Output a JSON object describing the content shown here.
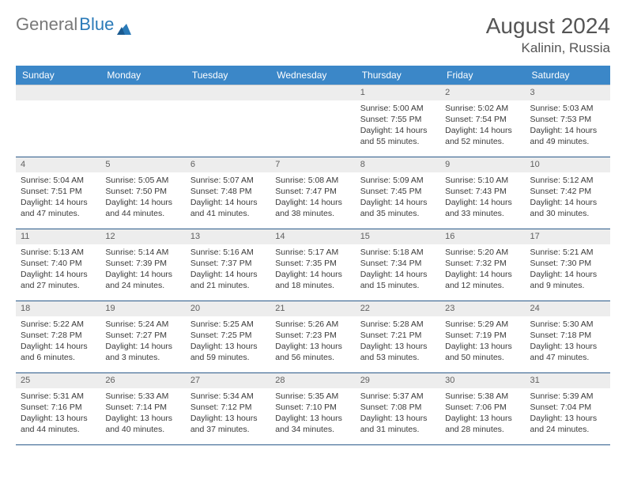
{
  "brand": {
    "part1": "General",
    "part2": "Blue"
  },
  "title": "August 2024",
  "location": "Kalinin, Russia",
  "colors": {
    "header_bg": "#3b87c8",
    "header_text": "#ffffff",
    "daynum_bg": "#ededed",
    "row_border": "#2b5a8a",
    "body_text": "#3a3a3a",
    "logo_gray": "#787878",
    "logo_blue": "#2a7ab8"
  },
  "weekdays": [
    "Sunday",
    "Monday",
    "Tuesday",
    "Wednesday",
    "Thursday",
    "Friday",
    "Saturday"
  ],
  "weeks": [
    [
      null,
      null,
      null,
      null,
      {
        "n": "1",
        "sr": "5:00 AM",
        "ss": "7:55 PM",
        "dl": "14 hours and 55 minutes."
      },
      {
        "n": "2",
        "sr": "5:02 AM",
        "ss": "7:54 PM",
        "dl": "14 hours and 52 minutes."
      },
      {
        "n": "3",
        "sr": "5:03 AM",
        "ss": "7:53 PM",
        "dl": "14 hours and 49 minutes."
      }
    ],
    [
      {
        "n": "4",
        "sr": "5:04 AM",
        "ss": "7:51 PM",
        "dl": "14 hours and 47 minutes."
      },
      {
        "n": "5",
        "sr": "5:05 AM",
        "ss": "7:50 PM",
        "dl": "14 hours and 44 minutes."
      },
      {
        "n": "6",
        "sr": "5:07 AM",
        "ss": "7:48 PM",
        "dl": "14 hours and 41 minutes."
      },
      {
        "n": "7",
        "sr": "5:08 AM",
        "ss": "7:47 PM",
        "dl": "14 hours and 38 minutes."
      },
      {
        "n": "8",
        "sr": "5:09 AM",
        "ss": "7:45 PM",
        "dl": "14 hours and 35 minutes."
      },
      {
        "n": "9",
        "sr": "5:10 AM",
        "ss": "7:43 PM",
        "dl": "14 hours and 33 minutes."
      },
      {
        "n": "10",
        "sr": "5:12 AM",
        "ss": "7:42 PM",
        "dl": "14 hours and 30 minutes."
      }
    ],
    [
      {
        "n": "11",
        "sr": "5:13 AM",
        "ss": "7:40 PM",
        "dl": "14 hours and 27 minutes."
      },
      {
        "n": "12",
        "sr": "5:14 AM",
        "ss": "7:39 PM",
        "dl": "14 hours and 24 minutes."
      },
      {
        "n": "13",
        "sr": "5:16 AM",
        "ss": "7:37 PM",
        "dl": "14 hours and 21 minutes."
      },
      {
        "n": "14",
        "sr": "5:17 AM",
        "ss": "7:35 PM",
        "dl": "14 hours and 18 minutes."
      },
      {
        "n": "15",
        "sr": "5:18 AM",
        "ss": "7:34 PM",
        "dl": "14 hours and 15 minutes."
      },
      {
        "n": "16",
        "sr": "5:20 AM",
        "ss": "7:32 PM",
        "dl": "14 hours and 12 minutes."
      },
      {
        "n": "17",
        "sr": "5:21 AM",
        "ss": "7:30 PM",
        "dl": "14 hours and 9 minutes."
      }
    ],
    [
      {
        "n": "18",
        "sr": "5:22 AM",
        "ss": "7:28 PM",
        "dl": "14 hours and 6 minutes."
      },
      {
        "n": "19",
        "sr": "5:24 AM",
        "ss": "7:27 PM",
        "dl": "14 hours and 3 minutes."
      },
      {
        "n": "20",
        "sr": "5:25 AM",
        "ss": "7:25 PM",
        "dl": "13 hours and 59 minutes."
      },
      {
        "n": "21",
        "sr": "5:26 AM",
        "ss": "7:23 PM",
        "dl": "13 hours and 56 minutes."
      },
      {
        "n": "22",
        "sr": "5:28 AM",
        "ss": "7:21 PM",
        "dl": "13 hours and 53 minutes."
      },
      {
        "n": "23",
        "sr": "5:29 AM",
        "ss": "7:19 PM",
        "dl": "13 hours and 50 minutes."
      },
      {
        "n": "24",
        "sr": "5:30 AM",
        "ss": "7:18 PM",
        "dl": "13 hours and 47 minutes."
      }
    ],
    [
      {
        "n": "25",
        "sr": "5:31 AM",
        "ss": "7:16 PM",
        "dl": "13 hours and 44 minutes."
      },
      {
        "n": "26",
        "sr": "5:33 AM",
        "ss": "7:14 PM",
        "dl": "13 hours and 40 minutes."
      },
      {
        "n": "27",
        "sr": "5:34 AM",
        "ss": "7:12 PM",
        "dl": "13 hours and 37 minutes."
      },
      {
        "n": "28",
        "sr": "5:35 AM",
        "ss": "7:10 PM",
        "dl": "13 hours and 34 minutes."
      },
      {
        "n": "29",
        "sr": "5:37 AM",
        "ss": "7:08 PM",
        "dl": "13 hours and 31 minutes."
      },
      {
        "n": "30",
        "sr": "5:38 AM",
        "ss": "7:06 PM",
        "dl": "13 hours and 28 minutes."
      },
      {
        "n": "31",
        "sr": "5:39 AM",
        "ss": "7:04 PM",
        "dl": "13 hours and 24 minutes."
      }
    ]
  ],
  "labels": {
    "sunrise": "Sunrise: ",
    "sunset": "Sunset: ",
    "daylight": "Daylight: "
  }
}
